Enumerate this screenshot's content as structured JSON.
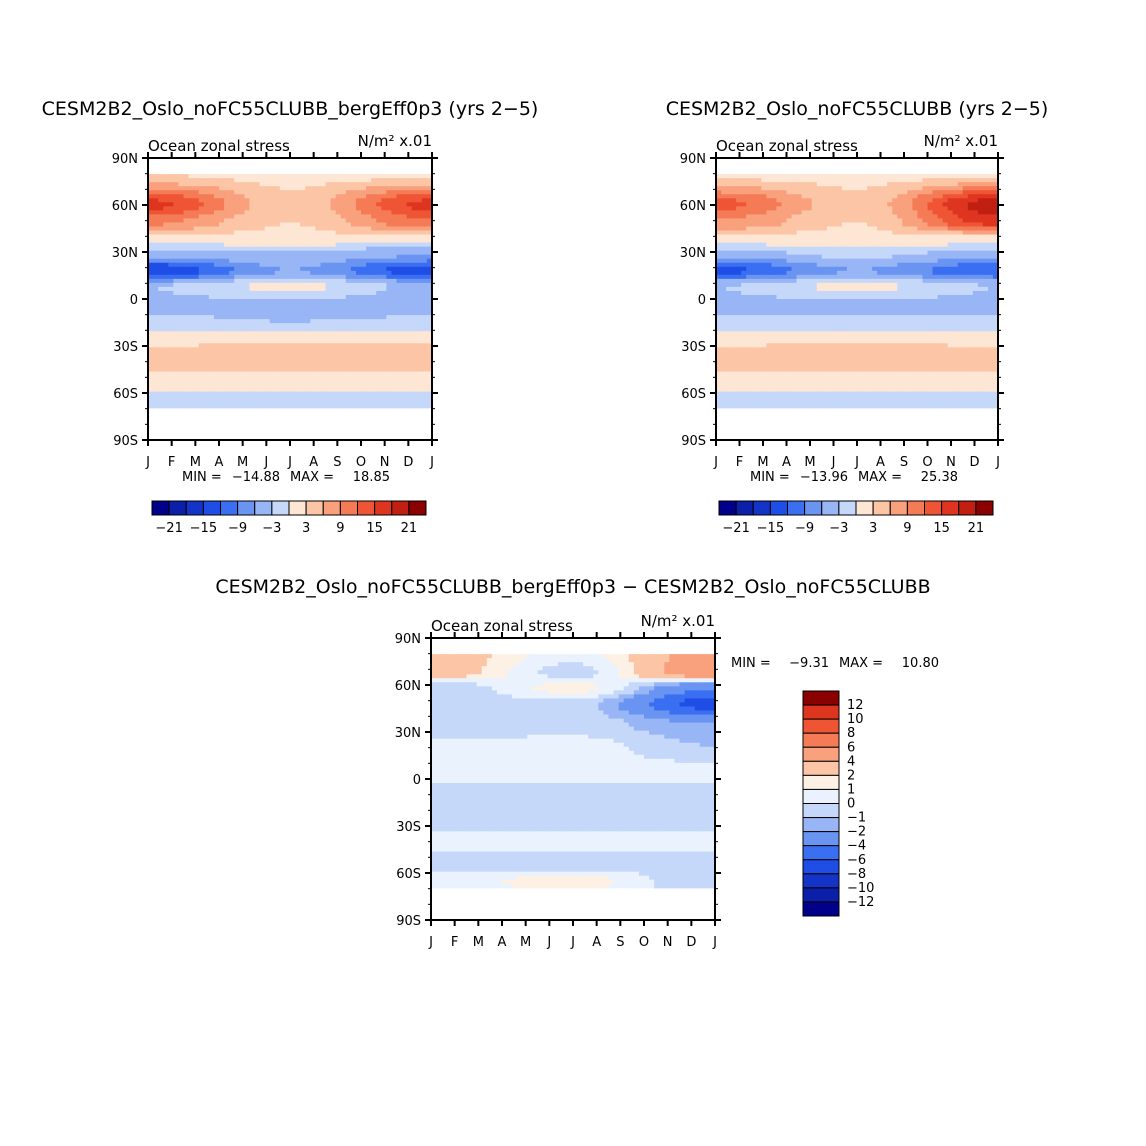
{
  "chart_data": [
    {
      "type": "heatmap",
      "id": "p1",
      "title": "CESM2B2_Oslo_noFC55CLUBB_bergEff0p3 (yrs 2−5)",
      "left_label": "Ocean zonal stress",
      "units_label": "N/m² x.01",
      "ylabel_ticks": [
        "90N",
        "60N",
        "30N",
        "0",
        "30S",
        "60S",
        "90S"
      ],
      "x_ticks": [
        "J",
        "F",
        "M",
        "A",
        "M",
        "J",
        "J",
        "A",
        "S",
        "O",
        "N",
        "D",
        "J"
      ],
      "stats": {
        "min_label": "MIN =",
        "min_value": "−14.88",
        "max_label": "MAX =",
        "max_value": "18.85"
      },
      "colorbar": {
        "orientation": "horizontal",
        "levels": [
          -24,
          -21,
          -18,
          -15,
          -12,
          -9,
          -6,
          -3,
          0,
          3,
          6,
          9,
          12,
          15,
          18,
          21,
          24
        ],
        "tick_labels": [
          "−21",
          "−15",
          "−9",
          "−3",
          "3",
          "9",
          "15",
          "21"
        ],
        "colors": [
          "#00008b",
          "#0b1fa8",
          "#1434c8",
          "#1f4ee6",
          "#3b6ff2",
          "#6a94f2",
          "#98b6f5",
          "#c5d8fa",
          "#fde6d4",
          "#fcc5a6",
          "#f9a07c",
          "#f57b56",
          "#ef5535",
          "#de3520",
          "#c01f12",
          "#8b0000"
        ]
      },
      "field_bands": [
        {
          "lat": 80,
          "v": 2,
          "v_left": 3,
          "v_right": 2
        },
        {
          "lat": 60,
          "v": 4,
          "v_left": 16,
          "v_right": 16
        },
        {
          "lat": 50,
          "v": 3,
          "v_left": 10,
          "v_right": 12
        },
        {
          "lat": 38,
          "v": 2,
          "v_left": 2,
          "v_right": 2
        },
        {
          "lat": 30,
          "v": -3,
          "v_left": -4,
          "v_right": -5
        },
        {
          "lat": 18,
          "v": -6,
          "v_left": -15,
          "v_right": -14
        },
        {
          "lat": 8,
          "v": 1,
          "v_left": -3,
          "v_right": -4
        },
        {
          "lat": -5,
          "v": -5,
          "v_left": -4,
          "v_right": -5
        },
        {
          "lat": -15,
          "v": -3,
          "v_left": -2,
          "v_right": -2
        },
        {
          "lat": -25,
          "v": 2,
          "v_left": 2,
          "v_right": 2
        },
        {
          "lat": -35,
          "v": 5,
          "v_left": 4,
          "v_right": 5
        },
        {
          "lat": -45,
          "v": 3,
          "v_left": 3,
          "v_right": 3
        },
        {
          "lat": -55,
          "v": 1,
          "v_left": 1,
          "v_right": 1
        },
        {
          "lat": -65,
          "v": -1,
          "v_left": -1,
          "v_right": -1
        },
        {
          "lat": -80,
          "v": 0,
          "v_left": 0,
          "v_right": 0
        }
      ]
    },
    {
      "type": "heatmap",
      "id": "p2",
      "title": "CESM2B2_Oslo_noFC55CLUBB (yrs 2−5)",
      "left_label": "Ocean zonal stress",
      "units_label": "N/m² x.01",
      "ylabel_ticks": [
        "90N",
        "60N",
        "30N",
        "0",
        "30S",
        "60S",
        "90S"
      ],
      "x_ticks": [
        "J",
        "F",
        "M",
        "A",
        "M",
        "J",
        "J",
        "A",
        "S",
        "O",
        "N",
        "D",
        "J"
      ],
      "stats": {
        "min_label": "MIN =",
        "min_value": "−13.96",
        "max_label": "MAX =",
        "max_value": "25.38"
      },
      "colorbar": {
        "orientation": "horizontal",
        "levels": [
          -24,
          -21,
          -18,
          -15,
          -12,
          -9,
          -6,
          -3,
          0,
          3,
          6,
          9,
          12,
          15,
          18,
          21,
          24
        ],
        "tick_labels": [
          "−21",
          "−15",
          "−9",
          "−3",
          "3",
          "9",
          "15",
          "21"
        ],
        "colors": [
          "#00008b",
          "#0b1fa8",
          "#1434c8",
          "#1f4ee6",
          "#3b6ff2",
          "#6a94f2",
          "#98b6f5",
          "#c5d8fa",
          "#fde6d4",
          "#fcc5a6",
          "#f9a07c",
          "#f57b56",
          "#ef5535",
          "#de3520",
          "#c01f12",
          "#8b0000"
        ]
      },
      "field_bands": [
        {
          "lat": 80,
          "v": 2,
          "v_left": 2,
          "v_right": 2
        },
        {
          "lat": 60,
          "v": 4,
          "v_left": 13,
          "v_right": 20
        },
        {
          "lat": 50,
          "v": 3,
          "v_left": 9,
          "v_right": 17
        },
        {
          "lat": 38,
          "v": 2,
          "v_left": 2,
          "v_right": 2
        },
        {
          "lat": 30,
          "v": -2,
          "v_left": -4,
          "v_right": -4
        },
        {
          "lat": 18,
          "v": -6,
          "v_left": -13,
          "v_right": -12
        },
        {
          "lat": 8,
          "v": 1,
          "v_left": -3,
          "v_right": -3
        },
        {
          "lat": -5,
          "v": -5,
          "v_left": -4,
          "v_right": -4
        },
        {
          "lat": -15,
          "v": -2,
          "v_left": -2,
          "v_right": -2
        },
        {
          "lat": -25,
          "v": 2,
          "v_left": 2,
          "v_right": 2
        },
        {
          "lat": -35,
          "v": 5,
          "v_left": 4,
          "v_right": 4
        },
        {
          "lat": -45,
          "v": 3,
          "v_left": 3,
          "v_right": 3
        },
        {
          "lat": -55,
          "v": 1,
          "v_left": 1,
          "v_right": 1
        },
        {
          "lat": -65,
          "v": -1,
          "v_left": -1,
          "v_right": -1
        },
        {
          "lat": -80,
          "v": 0,
          "v_left": 0,
          "v_right": 0
        }
      ]
    },
    {
      "type": "heatmap",
      "id": "p3",
      "title": "CESM2B2_Oslo_noFC55CLUBB_bergEff0p3 − CESM2B2_Oslo_noFC55CLUBB",
      "left_label": "Ocean zonal stress",
      "units_label": "N/m² x.01",
      "ylabel_ticks": [
        "90N",
        "60N",
        "30N",
        "0",
        "30S",
        "60S",
        "90S"
      ],
      "x_ticks": [
        "J",
        "F",
        "M",
        "A",
        "M",
        "J",
        "J",
        "A",
        "S",
        "O",
        "N",
        "D",
        "J"
      ],
      "stats": {
        "min_label": "MIN =",
        "min_value": "−9.31",
        "max_label": "MAX =",
        "max_value": "10.80"
      },
      "colorbar": {
        "orientation": "vertical",
        "levels": [
          -14,
          -12,
          -10,
          -8,
          -6,
          -4,
          -2,
          -1,
          0,
          1,
          2,
          4,
          6,
          8,
          10,
          12,
          14
        ],
        "tick_labels": [
          "12",
          "10",
          "8",
          "6",
          "4",
          "2",
          "1",
          "0",
          "−1",
          "−2",
          "−4",
          "−6",
          "−8",
          "−10",
          "−12"
        ],
        "colors": [
          "#00008b",
          "#0b1fa8",
          "#1434c8",
          "#1f4ee6",
          "#3b6ff2",
          "#6a94f2",
          "#98b6f5",
          "#c5d8fa",
          "#eaf2fe",
          "#fdf0e4",
          "#fcc5a6",
          "#f9a07c",
          "#f57b56",
          "#ef5535",
          "#de3520",
          "#8b0000"
        ]
      },
      "field_bands": [
        {
          "lat": 80,
          "v": 0.5,
          "v_left": 3,
          "v_right": 5
        },
        {
          "lat": 68,
          "v": -0.5,
          "v_left": 3,
          "v_right": 6
        },
        {
          "lat": 58,
          "v": 1.5,
          "v_left": -1,
          "v_right": -4
        },
        {
          "lat": 48,
          "v": -0.5,
          "v_left": -0.5,
          "v_right": -7
        },
        {
          "lat": 35,
          "v": -0.5,
          "v_left": -1,
          "v_right": -2
        },
        {
          "lat": 20,
          "v": 0.5,
          "v_left": 0.5,
          "v_right": -1
        },
        {
          "lat": 5,
          "v": 0.5,
          "v_left": 0.5,
          "v_right": 0.5
        },
        {
          "lat": -10,
          "v": -0.5,
          "v_left": -0.5,
          "v_right": -0.5
        },
        {
          "lat": -25,
          "v": -0.5,
          "v_left": -0.5,
          "v_right": -0.5
        },
        {
          "lat": -40,
          "v": 0.5,
          "v_left": 0.5,
          "v_right": 0.5
        },
        {
          "lat": -55,
          "v": -0.5,
          "v_left": -0.5,
          "v_right": -0.5
        },
        {
          "lat": -65,
          "v": 1.5,
          "v_left": 0.5,
          "v_right": -1
        },
        {
          "lat": -80,
          "v": 0,
          "v_left": 0,
          "v_right": 0
        }
      ]
    }
  ]
}
